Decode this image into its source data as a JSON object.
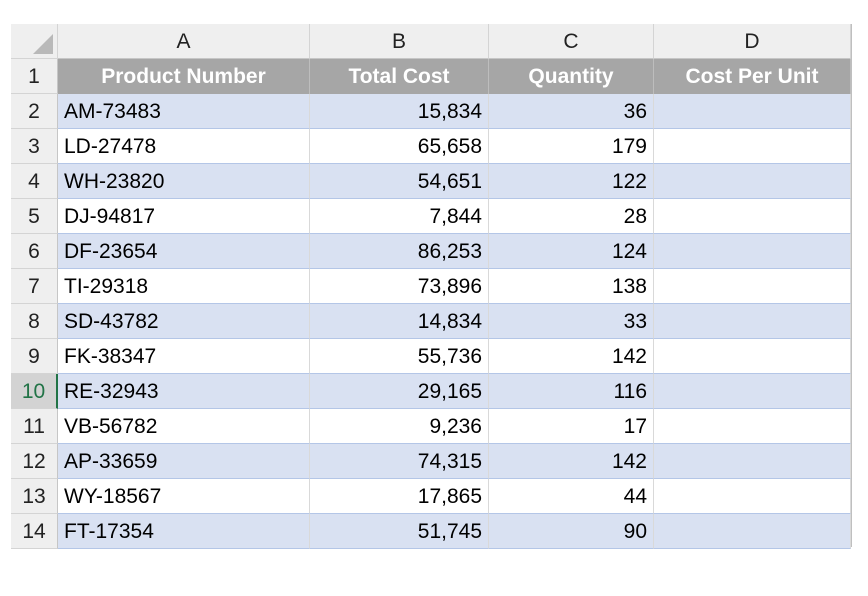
{
  "columns": [
    "A",
    "B",
    "C",
    "D"
  ],
  "headers": [
    "Product Number",
    "Total Cost",
    "Quantity",
    "Cost Per Unit"
  ],
  "rows": [
    {
      "num": "1"
    },
    {
      "num": "2",
      "product": "AM-73483",
      "total": "15,834",
      "qty": "36",
      "cpu": ""
    },
    {
      "num": "3",
      "product": "LD-27478",
      "total": "65,658",
      "qty": "179",
      "cpu": ""
    },
    {
      "num": "4",
      "product": "WH-23820",
      "total": "54,651",
      "qty": "122",
      "cpu": ""
    },
    {
      "num": "5",
      "product": "DJ-94817",
      "total": "7,844",
      "qty": "28",
      "cpu": ""
    },
    {
      "num": "6",
      "product": "DF-23654",
      "total": "86,253",
      "qty": "124",
      "cpu": ""
    },
    {
      "num": "7",
      "product": "TI-29318",
      "total": "73,896",
      "qty": "138",
      "cpu": ""
    },
    {
      "num": "8",
      "product": "SD-43782",
      "total": "14,834",
      "qty": "33",
      "cpu": ""
    },
    {
      "num": "9",
      "product": "FK-38347",
      "total": "55,736",
      "qty": "142",
      "cpu": ""
    },
    {
      "num": "10",
      "product": "RE-32943",
      "total": "29,165",
      "qty": "116",
      "cpu": ""
    },
    {
      "num": "11",
      "product": "VB-56782",
      "total": "9,236",
      "qty": "17",
      "cpu": ""
    },
    {
      "num": "12",
      "product": "AP-33659",
      "total": "74,315",
      "qty": "142",
      "cpu": ""
    },
    {
      "num": "13",
      "product": "WY-18567",
      "total": "17,865",
      "qty": "44",
      "cpu": ""
    },
    {
      "num": "14",
      "product": "FT-17354",
      "total": "51,745",
      "qty": "90",
      "cpu": ""
    }
  ],
  "selected_row": "10",
  "colors": {
    "header_fill": "#a6a6a6",
    "band_fill": "#d9e1f2",
    "selection_accent": "#217346"
  }
}
